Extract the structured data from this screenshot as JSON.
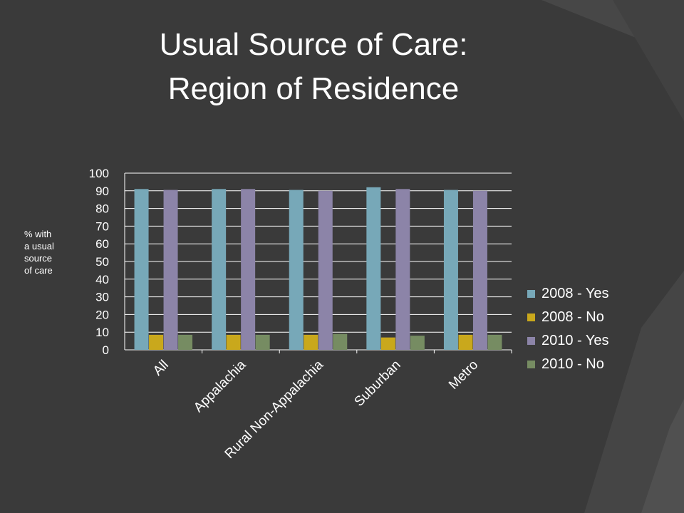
{
  "slide": {
    "title_line1": "Usual Source of Care:",
    "title_line2": "Region of Residence",
    "y_axis_note": [
      "% with",
      "a usual",
      "source",
      "of care"
    ]
  },
  "colors": {
    "background": "#3a3a3a",
    "axis_text": "#ffffff",
    "gridline": "#ffffff"
  },
  "chart_data": {
    "type": "bar",
    "categories": [
      "All",
      "Appalachia",
      "Rural Non-Appalachia",
      "Suburban",
      "Metro"
    ],
    "series": [
      {
        "name": "2008 - Yes",
        "color": "#77a8b8",
        "values": [
          91,
          91,
          90.5,
          92,
          90.5
        ]
      },
      {
        "name": "2008 - No",
        "color": "#c9a81c",
        "values": [
          8.5,
          8.5,
          8.5,
          7,
          8.5
        ]
      },
      {
        "name": "2010 - Yes",
        "color": "#8c84a8",
        "values": [
          90.5,
          91,
          90,
          91,
          90
        ]
      },
      {
        "name": "2010 - No",
        "color": "#768c62",
        "values": [
          8.5,
          8.5,
          9,
          8,
          8.5
        ]
      }
    ],
    "ylim": [
      0,
      100
    ],
    "yticks": [
      0,
      10,
      20,
      30,
      40,
      50,
      60,
      70,
      80,
      90,
      100
    ],
    "ylabel": "% with a usual source of care",
    "xlabel": "",
    "grid": true,
    "legend_position": "right"
  }
}
